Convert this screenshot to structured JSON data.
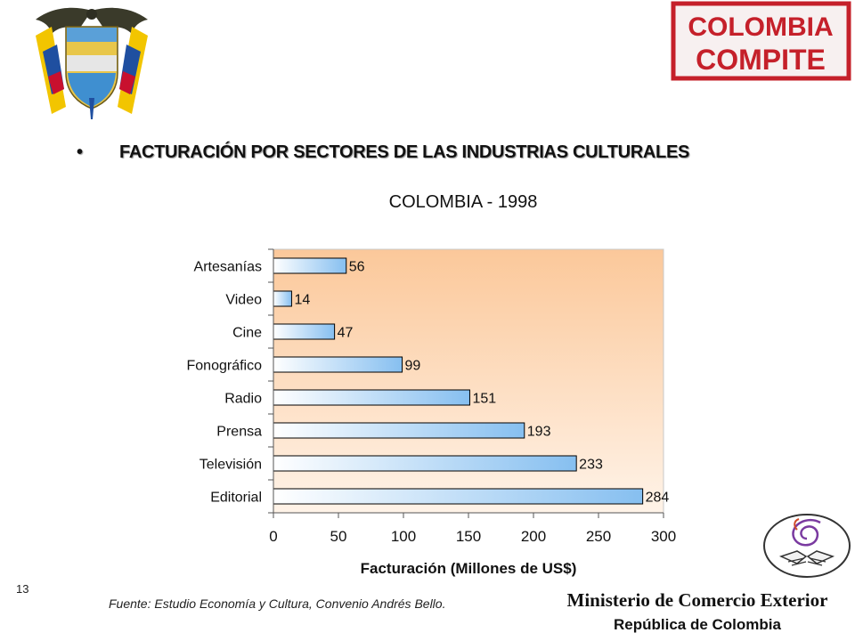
{
  "logos": {
    "coat_of_arms": "colombia-coat-of-arms",
    "stamp_text_line1": "COLOMBIA",
    "stamp_text_line2": "COMPITE",
    "hands_logo": "hands-spiral-logo"
  },
  "slide": {
    "headline": "FACTURACIÓN POR SECTORES DE LAS INDUSTRIAS CULTURALES",
    "bullet": "•",
    "page_number": "13",
    "source": "Fuente: Estudio Economía y Cultura, Convenio Andrés Bello.",
    "ministry": "Ministerio de Comercio Exterior",
    "republic": "República de Colombia"
  },
  "chart_data": {
    "type": "bar",
    "orientation": "horizontal",
    "title": "COLOMBIA - 1998",
    "xlabel": "Facturación (Millones de US$)",
    "ylabel": "",
    "categories": [
      "Artesanías",
      "Video",
      "Cine",
      "Fonográfico",
      "Radio",
      "Prensa",
      "Televisión",
      "Editorial"
    ],
    "values": [
      56,
      14,
      47,
      99,
      151,
      193,
      233,
      284
    ],
    "xlim": [
      0,
      300
    ],
    "xticks": [
      0,
      50,
      100,
      150,
      200,
      250,
      300
    ],
    "grid": false,
    "legend": "none",
    "colors": {
      "plot_bg_top": "#fbc89a",
      "plot_bg_bottom": "#fff3e8",
      "bar_light": "#ffffff",
      "bar_dark": "#86bff0",
      "bar_stroke": "#000000"
    }
  }
}
